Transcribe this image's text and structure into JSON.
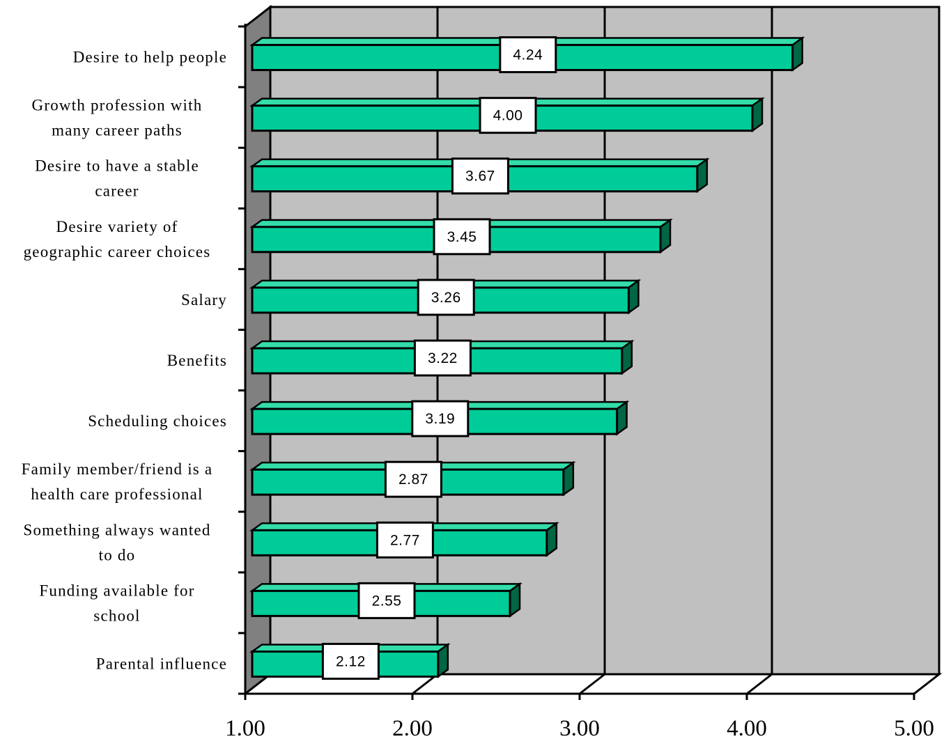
{
  "chart_data": {
    "type": "bar",
    "orientation": "horizontal",
    "style": "3d",
    "categories": [
      "Desire to help people",
      "Growth profession with many career paths",
      "Desire to have a stable career",
      "Desire variety of geographic career choices",
      "Salary",
      "Benefits",
      "Scheduling choices",
      "Family member/friend is a health care professional",
      "Something always wanted to do",
      "Funding available for school",
      "Parental influence"
    ],
    "category_lines": [
      [
        "Desire to help people"
      ],
      [
        "Growth profession with",
        "many career paths"
      ],
      [
        "Desire to have a stable",
        "career"
      ],
      [
        "Desire variety of",
        "geographic career choices"
      ],
      [
        "Salary"
      ],
      [
        "Benefits"
      ],
      [
        "Scheduling choices"
      ],
      [
        "Family member/friend is a",
        "health care professional"
      ],
      [
        "Something always wanted",
        "to do"
      ],
      [
        "Funding available for",
        "school"
      ],
      [
        "Parental influence"
      ]
    ],
    "values": [
      4.24,
      4.0,
      3.67,
      3.45,
      3.26,
      3.22,
      3.19,
      2.87,
      2.77,
      2.55,
      2.12
    ],
    "data_labels": [
      "4.24",
      "4.00",
      "3.67",
      "3.45",
      "3.26",
      "3.22",
      "3.19",
      "2.87",
      "2.77",
      "2.55",
      "2.12"
    ],
    "xlim": [
      1.0,
      5.0
    ],
    "x_ticks": [
      1.0,
      2.0,
      3.0,
      4.0,
      5.0
    ],
    "x_tick_labels": [
      "1.00",
      "2.00",
      "3.00",
      "4.00",
      "5.00"
    ],
    "xlabel": "",
    "ylabel": "",
    "title": "",
    "grid": true,
    "legend": "none",
    "colors": {
      "bar_front": "#00CC99",
      "bar_side": "#006644",
      "bar_top": "#33DDAA",
      "plot_back": "#C0C0C0",
      "side_wall": "#808080",
      "floor": "#FFFFFF"
    }
  }
}
